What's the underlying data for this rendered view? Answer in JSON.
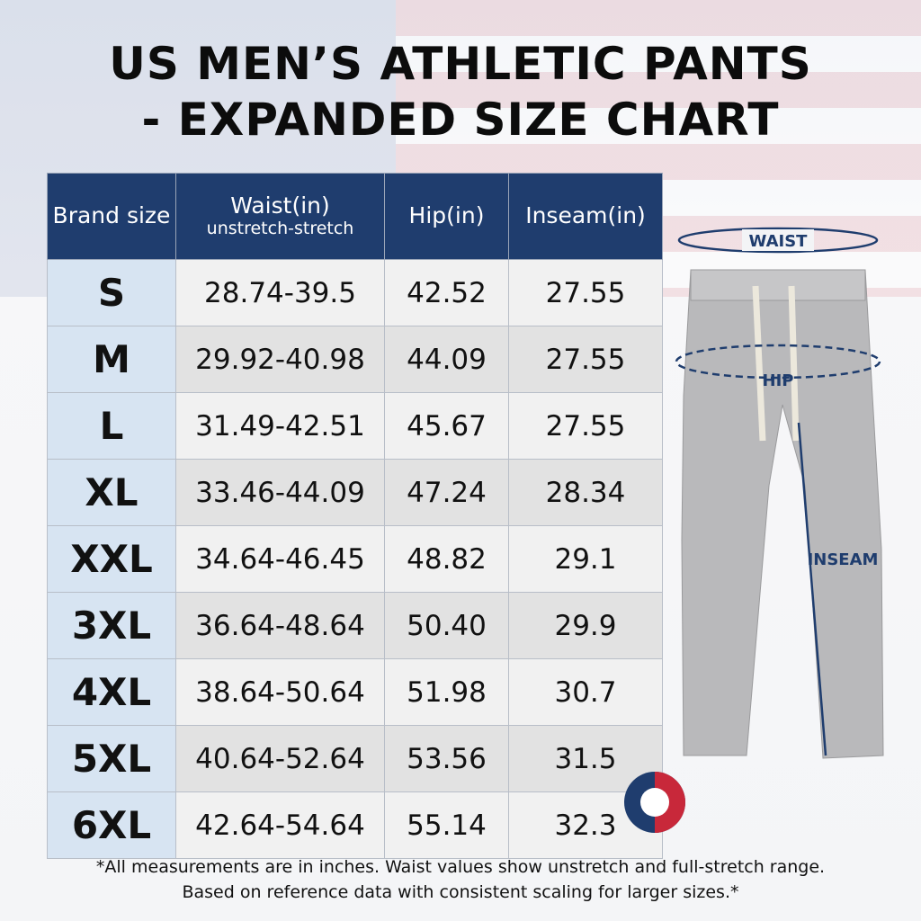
{
  "header": {
    "title_line1": "US MEN’S ATHLETIC PANTS",
    "title_line2": "- EXPANDED SIZE CHART"
  },
  "table": {
    "columns": [
      {
        "title": "Brand size"
      },
      {
        "title": "Waist(in)",
        "subtitle": "unstretch-stretch"
      },
      {
        "title": "Hip(in)"
      },
      {
        "title": "Inseam(in)"
      }
    ],
    "rows": [
      [
        "S",
        "28.74-39.5",
        "42.52",
        "27.55"
      ],
      [
        "M",
        "29.92-40.98",
        "44.09",
        "27.55"
      ],
      [
        "L",
        "31.49-42.51",
        "45.67",
        "27.55"
      ],
      [
        "XL",
        "33.46-44.09",
        "47.24",
        "28.34"
      ],
      [
        "XXL",
        "34.64-46.45",
        "48.82",
        "29.1"
      ],
      [
        "3XL",
        "36.64-48.64",
        "50.40",
        "29.9"
      ],
      [
        "4XL",
        "38.64-50.64",
        "51.98",
        "30.7"
      ],
      [
        "5XL",
        "40.64-52.64",
        "53.56",
        "31.5"
      ],
      [
        "6XL",
        "42.64-54.64",
        "55.14",
        "32.3"
      ]
    ]
  },
  "diagram": {
    "waist": "WAIST",
    "hip": "HIP",
    "inseam": "INSEAM"
  },
  "footnote": {
    "line1": "*All measurements are in inches. Waist values show unstretch and full-stretch range.",
    "line2": "Based on reference data with consistent scaling for larger sizes.*"
  }
}
